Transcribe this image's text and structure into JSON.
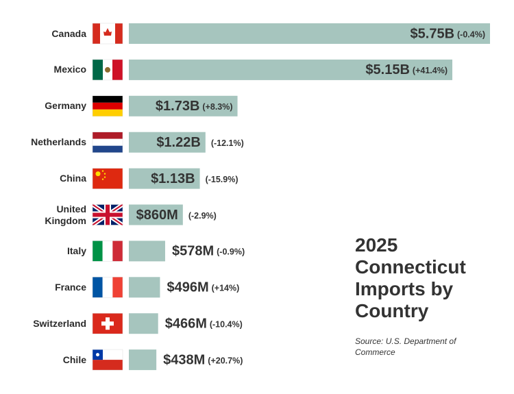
{
  "chart_data": {
    "type": "bar",
    "orientation": "horizontal",
    "title": "2025 Connecticut Imports by Country",
    "source": "Source: U.S. Department of Commerce",
    "categories": [
      "Canada",
      "Mexico",
      "Germany",
      "Netherlands",
      "China",
      "United Kingdom",
      "Italy",
      "France",
      "Switzerland",
      "Chile"
    ],
    "values": [
      5750000000,
      5150000000,
      1730000000,
      1220000000,
      1130000000,
      860000000,
      578000000,
      496000000,
      466000000,
      438000000
    ],
    "value_labels": [
      "$5.75B",
      "$5.15B",
      "$1.73B",
      "$1.22B",
      "$1.13B",
      "$860M",
      "$578M",
      "$496M",
      "$466M",
      "$438M"
    ],
    "changes": [
      -0.4,
      41.4,
      8.3,
      -12.1,
      -15.9,
      -2.9,
      -0.9,
      14,
      -10.4,
      20.7
    ],
    "change_labels": [
      "(-0.4%)",
      "(+41.4%)",
      "(+8.3%)",
      "(-12.1%)",
      "(-15.9%)",
      "(-2.9%)",
      "(-0.9%)",
      "(+14%)",
      "(-10.4%)",
      "(+20.7%)"
    ],
    "color": "#a6c5be"
  }
}
